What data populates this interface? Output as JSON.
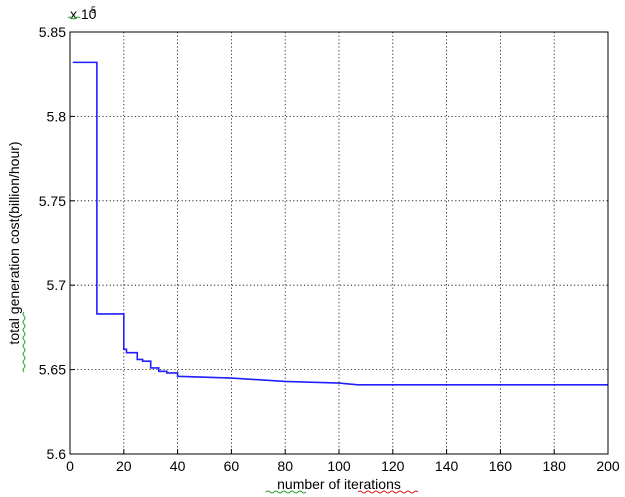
{
  "chart_data": {
    "type": "line",
    "title": "",
    "xlabel": "number of iterations",
    "ylabel": "total generation cost(billion/hour)",
    "y_exponent_label": "x 10",
    "y_exponent_power": "5",
    "xlim": [
      0,
      200
    ],
    "ylim": [
      5.6,
      5.85
    ],
    "x_ticks": [
      "0",
      "20",
      "40",
      "60",
      "80",
      "100",
      "120",
      "140",
      "160",
      "180",
      "200"
    ],
    "y_ticks": [
      "5.6",
      "5.65",
      "5.7",
      "5.75",
      "5.8",
      "5.85"
    ],
    "grid": true,
    "line_color": "#1f1fff",
    "series": [
      {
        "name": "",
        "x": [
          1,
          10,
          10,
          20,
          20,
          21,
          21,
          25,
          25,
          27,
          27,
          30,
          30,
          33,
          33,
          36,
          36,
          40,
          40,
          60,
          80,
          100,
          107,
          200
        ],
        "y": [
          5.832,
          5.832,
          5.683,
          5.683,
          5.662,
          5.662,
          5.66,
          5.66,
          5.656,
          5.656,
          5.655,
          5.655,
          5.651,
          5.651,
          5.649,
          5.649,
          5.648,
          5.648,
          5.646,
          5.645,
          5.643,
          5.642,
          5.641,
          5.641
        ]
      }
    ]
  }
}
